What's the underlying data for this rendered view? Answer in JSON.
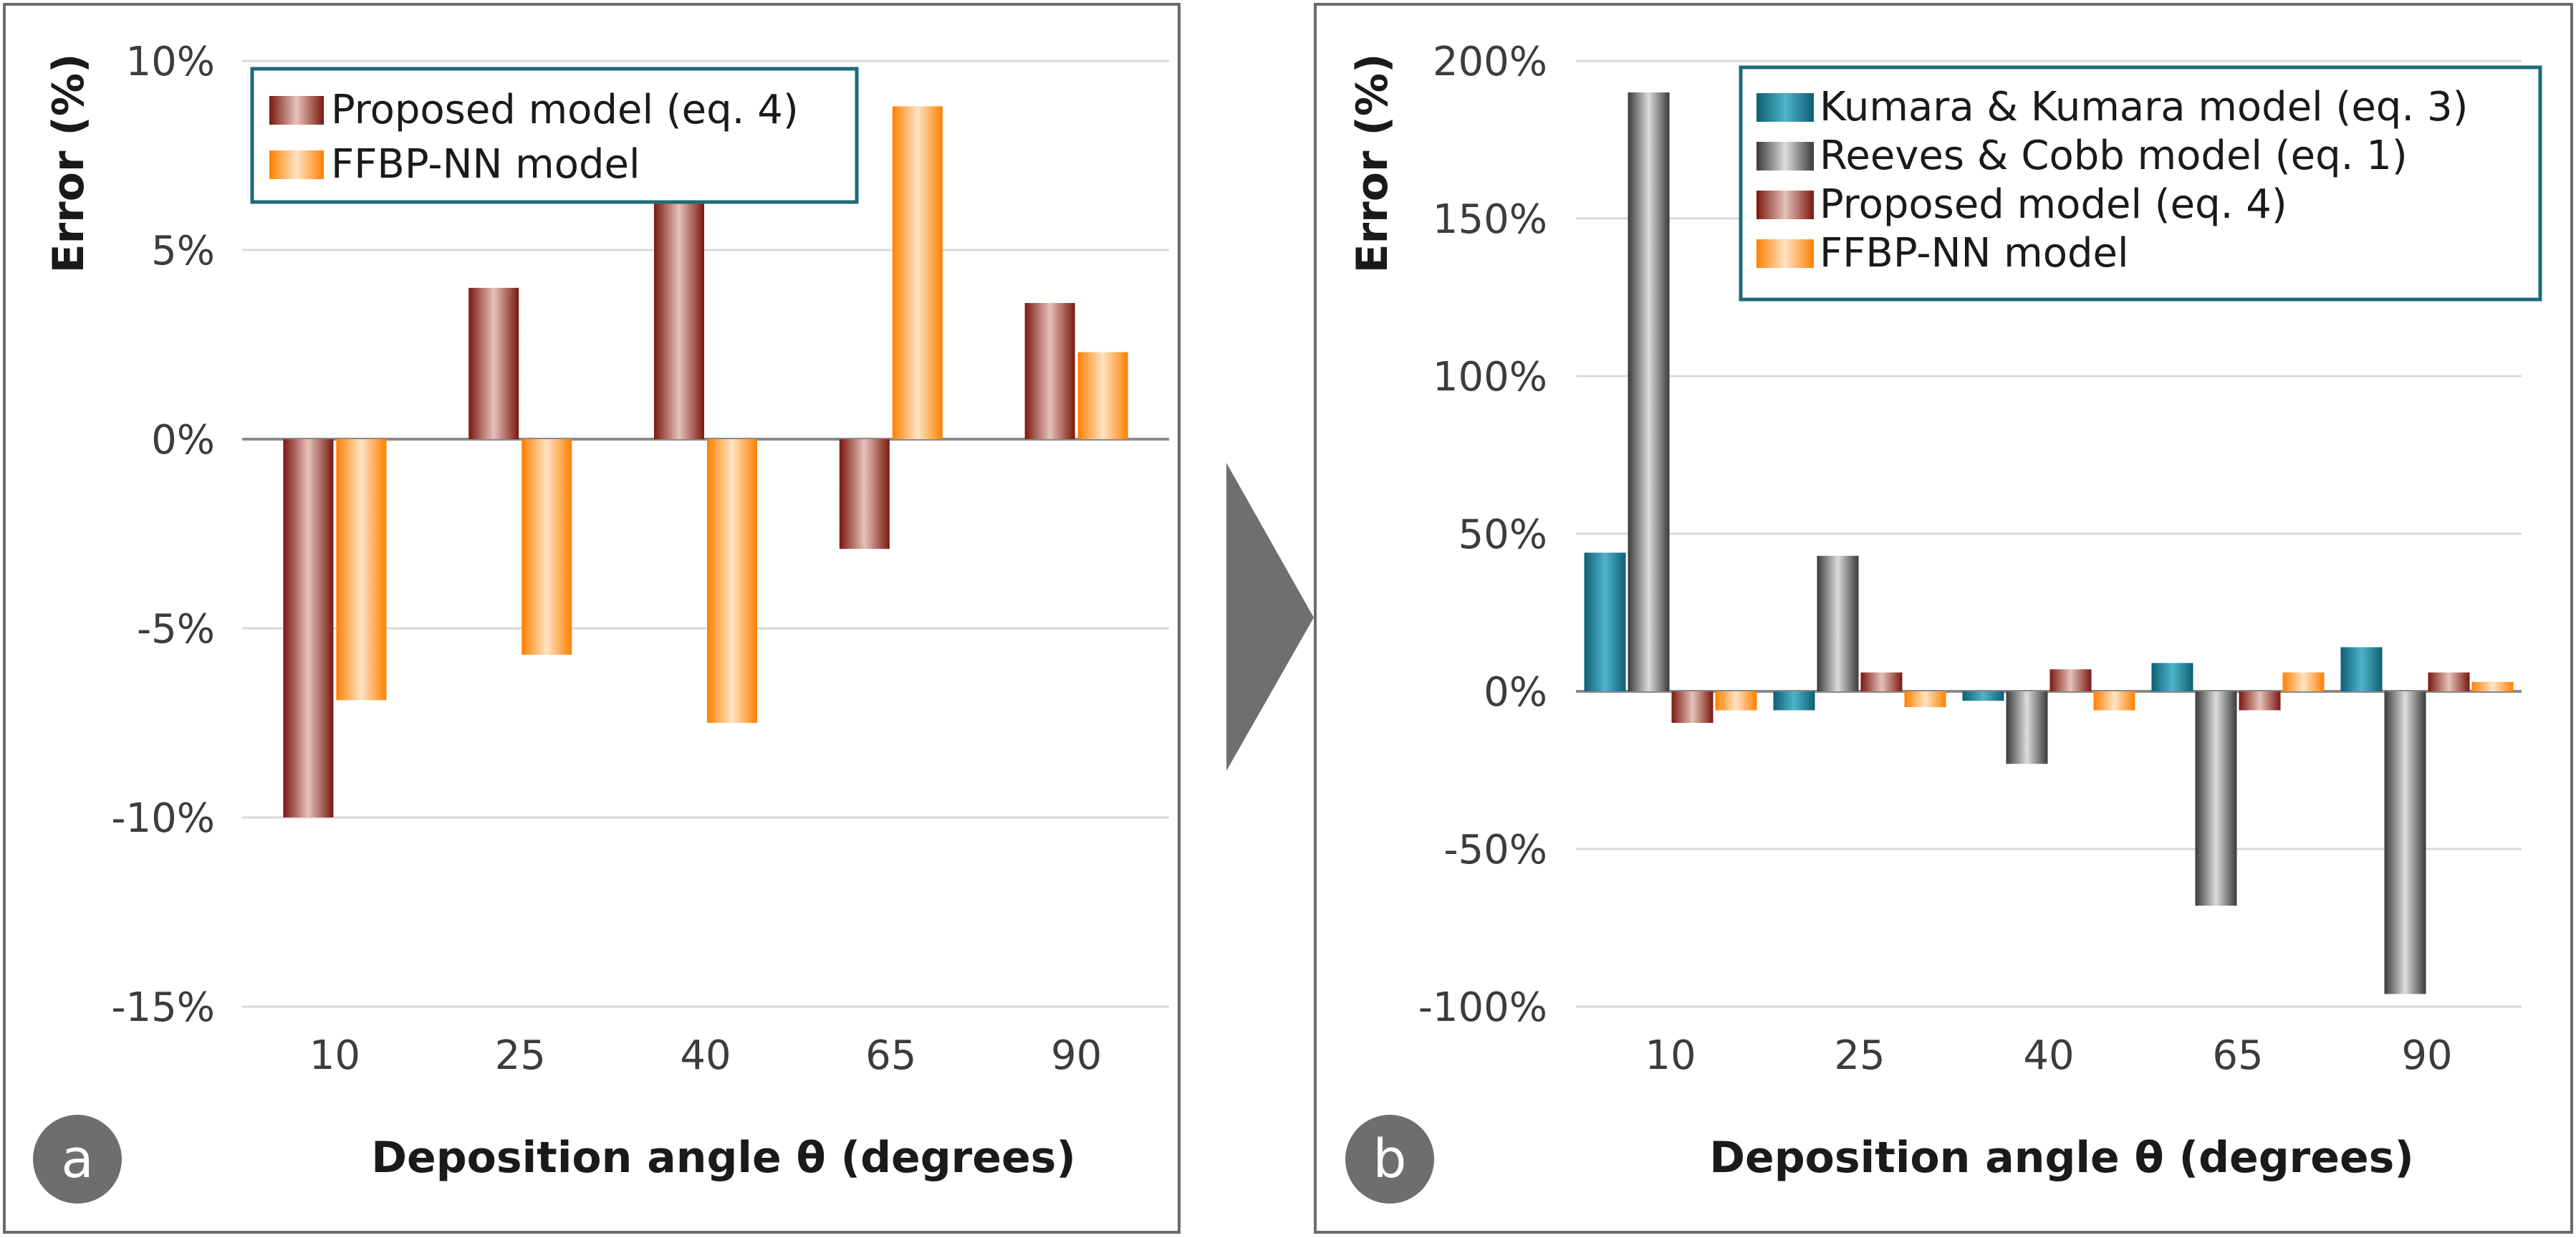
{
  "chart_data": [
    {
      "type": "bar",
      "panel_label": "a",
      "title": "",
      "xlabel": "Deposition angle θ (degrees)",
      "ylabel": "Error (%)",
      "ylim": [
        -15,
        10
      ],
      "yticks": [
        10,
        5,
        0,
        -5,
        -10,
        -15
      ],
      "ytick_labels": [
        "10%",
        "5%",
        "0%",
        "-5%",
        "-10%",
        "-15%"
      ],
      "categories": [
        "10",
        "25",
        "40",
        "65",
        "90"
      ],
      "grid": true,
      "legend_position": "top-left",
      "series": [
        {
          "name": "Proposed model (eq. 4)",
          "values": [
            -10.0,
            4.0,
            6.3,
            -2.9,
            3.6
          ]
        },
        {
          "name": "FFBP-NN model",
          "values": [
            -6.9,
            -5.7,
            -7.5,
            8.8,
            2.3
          ]
        }
      ]
    },
    {
      "type": "bar",
      "panel_label": "b",
      "title": "",
      "xlabel": "Deposition angle θ (degrees)",
      "ylabel": "Error (%)",
      "ylim": [
        -100,
        200
      ],
      "yticks": [
        200,
        150,
        100,
        50,
        0,
        -50,
        -100
      ],
      "ytick_labels": [
        "200%",
        "150%",
        "100%",
        "50%",
        "0%",
        "-50%",
        "-100%"
      ],
      "categories": [
        "10",
        "25",
        "40",
        "65",
        "90"
      ],
      "grid": true,
      "legend_position": "top-right",
      "series": [
        {
          "name": "Kumara & Kumara model (eq. 3)",
          "values": [
            44,
            -6,
            -3,
            9,
            14
          ]
        },
        {
          "name": "Reeves & Cobb model (eq. 1)",
          "values": [
            190,
            43,
            -23,
            -68,
            -96
          ]
        },
        {
          "name": "Proposed model (eq. 4)",
          "values": [
            -10,
            6,
            7,
            -6,
            6
          ]
        },
        {
          "name": "FFBP-NN model",
          "values": [
            -6,
            -5,
            -6,
            6,
            3
          ]
        }
      ]
    }
  ],
  "colors": {
    "proposed": "#8b1a12",
    "ffbp": "#ff8a0a",
    "kumara": "#0f6b82",
    "reeves": "#505050",
    "legend_border": "#1e6b78"
  }
}
